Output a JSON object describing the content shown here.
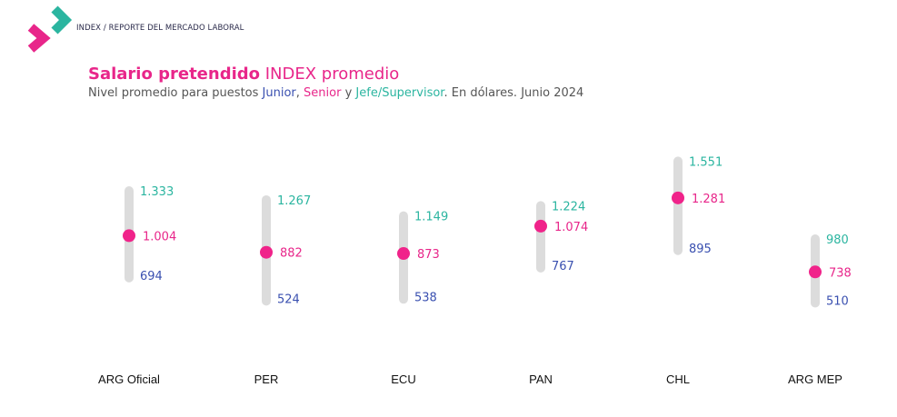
{
  "header": {
    "breadcrumb": "INDEX / REPORTE DEL MERCADO LABORAL"
  },
  "chart_data": {
    "type": "range-dot",
    "title_bold": "Salario pretendido",
    "title_rest": " INDEX promedio",
    "subtitle_parts": [
      "Nivel promedio para puestos ",
      "Junior",
      ", ",
      "Senior",
      " y ",
      "Jefe/Supervisor",
      ". En dólares. Junio 2024"
    ],
    "categories": [
      "ARG Oficial",
      "PER",
      "ECU",
      "PAN",
      "CHL",
      "ARG MEP"
    ],
    "series": [
      {
        "name": "Junior",
        "values": [
          694,
          524,
          538,
          767,
          895,
          510
        ],
        "labels": [
          "694",
          "524",
          "538",
          "767",
          "895",
          "510"
        ],
        "color": "#3a50b0"
      },
      {
        "name": "Senior",
        "values": [
          1004,
          882,
          873,
          1074,
          1281,
          738
        ],
        "labels": [
          "1.004",
          "882",
          "873",
          "1.074",
          "1.281",
          "738"
        ],
        "color": "#e8268a"
      },
      {
        "name": "Jefe/Supervisor",
        "values": [
          1333,
          1267,
          1149,
          1224,
          1551,
          980
        ],
        "labels": [
          "1.333",
          "1.267",
          "1.149",
          "1.224",
          "1.551",
          "980"
        ],
        "color": "#2bb5a0"
      }
    ],
    "colors": {
      "bar": "#dcdcdc",
      "dot": "#f0238a"
    }
  }
}
